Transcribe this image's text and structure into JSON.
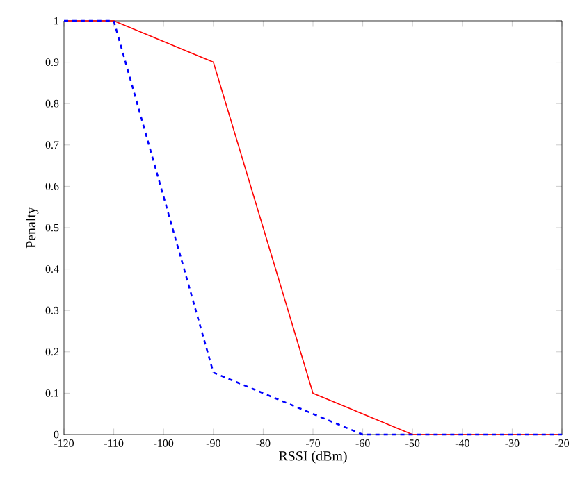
{
  "chart_data": {
    "type": "line",
    "xlabel": "RSSI (dBm)",
    "ylabel": "Penalty",
    "x": [
      -120,
      -110,
      -90,
      -70,
      -60,
      -50,
      -20
    ],
    "series": [
      {
        "color": "#ff0000",
        "line_style": "solid",
        "values": [
          1,
          1,
          0.9,
          0.1,
          null,
          0,
          0
        ]
      },
      {
        "color": "#0000ff",
        "line_style": "dashed",
        "values": [
          1,
          1,
          0.15,
          null,
          0,
          null,
          0
        ]
      }
    ],
    "xlim": [
      -120,
      -20
    ],
    "xticks": [
      -120,
      -110,
      -100,
      -90,
      -80,
      -70,
      -60,
      -50,
      -40,
      -30,
      -20
    ],
    "ylim": [
      0,
      1
    ],
    "yticks": [
      0,
      0.1,
      0.2,
      0.3,
      0.4,
      0.5,
      0.6,
      0.7,
      0.8,
      0.9,
      1
    ],
    "marker": "none"
  }
}
